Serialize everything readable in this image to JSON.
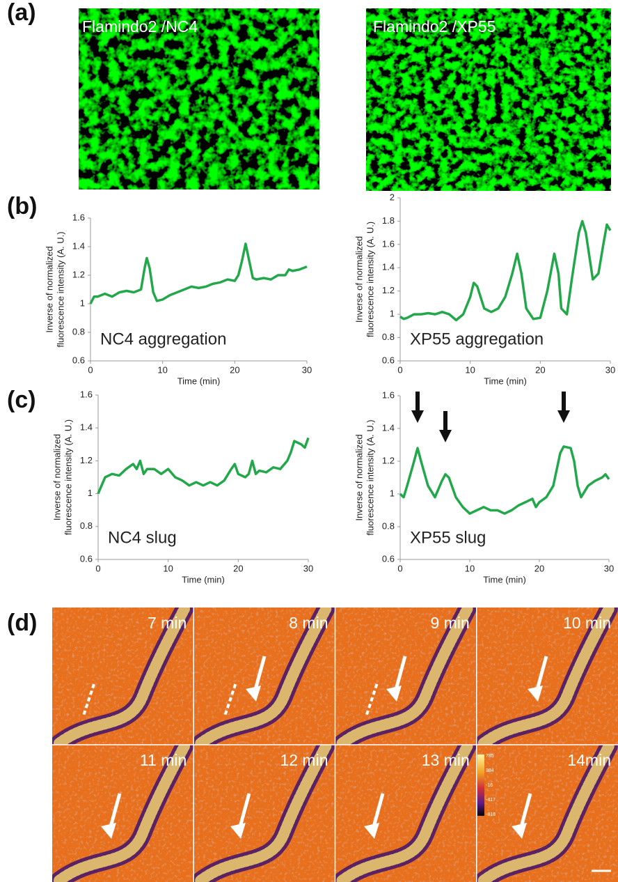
{
  "panel_labels": [
    "(a)",
    "(b)",
    "(c)",
    "(d)"
  ],
  "images": [
    "Flamindo2 /NC4",
    "Flamindo2 /XP55"
  ],
  "chart_data": [
    {
      "type": "line",
      "annotation": "NC4 aggregation",
      "x_label": "Time (min)",
      "y_label": [
        "Inverse of normalized",
        "fluorescence intensity (A. U.)"
      ],
      "series": [
        {
          "color": "#22a84a",
          "x": [
            0,
            0.5,
            1,
            2,
            3,
            4,
            5,
            6,
            7,
            7.5,
            7.8,
            8.2,
            8.7,
            9.2,
            10,
            11,
            12,
            13,
            14,
            15,
            16,
            17,
            18,
            19,
            20,
            20.5,
            21,
            21.5,
            22,
            22.5,
            23,
            24,
            25,
            26,
            27,
            27.5,
            28,
            29,
            30
          ],
          "values": [
            1.0,
            1.05,
            1.05,
            1.07,
            1.05,
            1.08,
            1.09,
            1.08,
            1.1,
            1.25,
            1.32,
            1.25,
            1.08,
            1.02,
            1.03,
            1.06,
            1.08,
            1.1,
            1.12,
            1.11,
            1.12,
            1.14,
            1.15,
            1.17,
            1.16,
            1.2,
            1.3,
            1.42,
            1.3,
            1.18,
            1.17,
            1.18,
            1.17,
            1.2,
            1.2,
            1.24,
            1.23,
            1.24,
            1.26
          ]
        }
      ],
      "xlim": [
        0,
        30
      ],
      "xticks": [
        0,
        10,
        20,
        30
      ],
      "ylim": [
        0.6,
        1.6
      ],
      "yticks": [
        0.6,
        0.8,
        1,
        1.2,
        1.4,
        1.6
      ]
    },
    {
      "type": "line",
      "annotation": "XP55 aggregation",
      "x_label": "Time (min)",
      "y_label": [
        "Inverse of normalized",
        "fluorescence intensity (A. U.)"
      ],
      "series": [
        {
          "color": "#22a84a",
          "x": [
            0,
            0.5,
            1,
            2,
            3,
            4,
            5,
            6,
            7,
            8,
            9,
            10,
            10.5,
            11,
            12,
            13,
            14,
            15,
            16,
            16.7,
            17.3,
            18,
            19,
            20,
            21,
            22,
            22.6,
            23,
            23.8,
            24.5,
            25.5,
            26,
            26.5,
            27.5,
            28.3,
            29,
            29.5,
            30
          ],
          "values": [
            0.98,
            0.96,
            0.97,
            1.0,
            1.0,
            1.01,
            1.0,
            1.02,
            1.0,
            0.95,
            1.0,
            1.15,
            1.27,
            1.24,
            1.05,
            1.02,
            1.05,
            1.15,
            1.35,
            1.52,
            1.35,
            1.05,
            0.96,
            0.97,
            1.2,
            1.52,
            1.35,
            1.05,
            1.0,
            1.3,
            1.7,
            1.8,
            1.7,
            1.3,
            1.35,
            1.6,
            1.77,
            1.72
          ]
        }
      ],
      "xlim": [
        0,
        30
      ],
      "xticks": [
        0,
        10,
        20,
        30
      ],
      "ylim": [
        0.6,
        2
      ],
      "yticks": [
        0.6,
        0.8,
        1,
        1.2,
        1.4,
        1.6,
        1.8,
        2
      ]
    },
    {
      "type": "line",
      "annotation": "NC4 slug",
      "x_label": "Time (min)",
      "y_label": [
        "Inverse of normalized",
        "fluorescence intensity (A. U.)"
      ],
      "series": [
        {
          "color": "#22a84a",
          "x": [
            0,
            0.5,
            1,
            2,
            3,
            4,
            5,
            5.5,
            6,
            6.5,
            7,
            8,
            9,
            10,
            11,
            12,
            13,
            14,
            15,
            16,
            17,
            18,
            19,
            19.5,
            20,
            21,
            21.5,
            22,
            22.5,
            23,
            24,
            25,
            26,
            27,
            27.5,
            28,
            29,
            29.5,
            30
          ],
          "values": [
            1.0,
            1.05,
            1.1,
            1.12,
            1.11,
            1.15,
            1.18,
            1.15,
            1.2,
            1.12,
            1.15,
            1.15,
            1.12,
            1.15,
            1.1,
            1.08,
            1.05,
            1.07,
            1.05,
            1.07,
            1.05,
            1.08,
            1.15,
            1.18,
            1.12,
            1.1,
            1.12,
            1.2,
            1.12,
            1.14,
            1.13,
            1.16,
            1.15,
            1.2,
            1.25,
            1.32,
            1.3,
            1.28,
            1.34
          ]
        }
      ],
      "xlim": [
        0,
        30
      ],
      "xticks": [
        0,
        10,
        20,
        30
      ],
      "ylim": [
        0.6,
        1.6
      ],
      "yticks": [
        0.6,
        0.8,
        1,
        1.2,
        1.4,
        1.6
      ]
    },
    {
      "type": "line",
      "annotation": "XP55 slug",
      "x_label": "Time (min)",
      "y_label": [
        "Inverse of normalized",
        "fluorescence intensity (A. U.)"
      ],
      "series": [
        {
          "color": "#22a84a",
          "x": [
            0,
            0.5,
            1,
            2,
            2.5,
            3,
            4,
            5,
            6,
            6.5,
            7,
            8,
            9,
            10,
            11,
            12,
            13,
            14,
            15,
            16,
            17,
            18,
            19,
            19.5,
            20,
            21,
            22,
            23,
            23.5,
            24.5,
            25,
            25.5,
            26,
            27,
            28,
            29,
            29.5,
            30
          ],
          "values": [
            1.0,
            0.98,
            1.05,
            1.2,
            1.28,
            1.2,
            1.05,
            0.98,
            1.08,
            1.12,
            1.1,
            0.98,
            0.92,
            0.88,
            0.9,
            0.92,
            0.9,
            0.9,
            0.88,
            0.9,
            0.93,
            0.95,
            0.97,
            0.92,
            0.95,
            0.98,
            1.05,
            1.25,
            1.29,
            1.28,
            1.2,
            1.05,
            0.98,
            1.05,
            1.08,
            1.1,
            1.12,
            1.09
          ]
        }
      ],
      "xlim": [
        0,
        30
      ],
      "xticks": [
        0,
        10,
        20,
        30
      ],
      "ylim": [
        0.6,
        1.6
      ],
      "yticks": [
        0.6,
        0.8,
        1,
        1.2,
        1.4,
        1.6
      ]
    }
  ],
  "frames": [
    "7 min",
    "8 min",
    "9 min",
    "10 min",
    "11 min",
    "12 min",
    "13 min",
    "14min"
  ],
  "colorbar_ticks": [
    "785",
    "384",
    "-16",
    "-417",
    "-818"
  ]
}
